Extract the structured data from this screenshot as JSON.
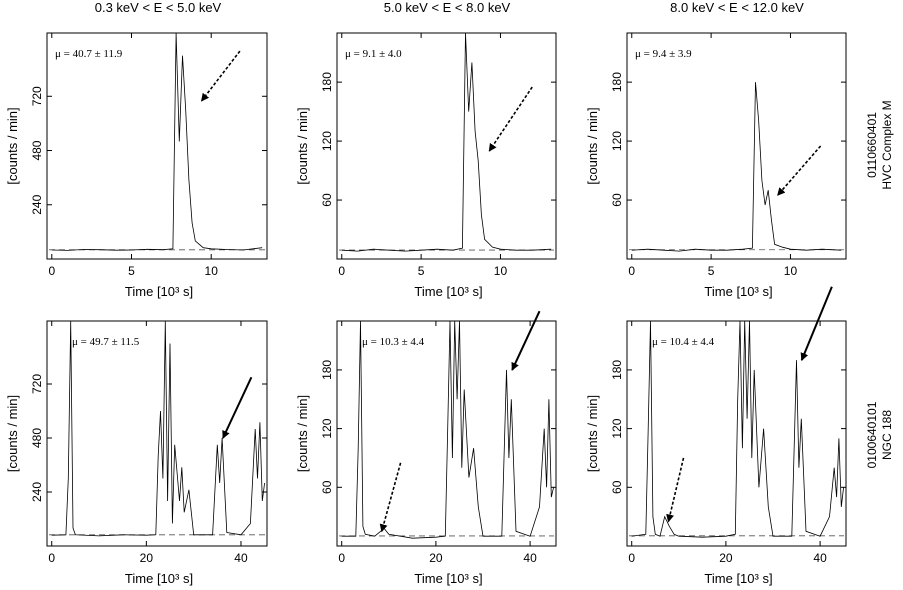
{
  "column_titles": [
    "0.3 keV < E < 5.0 keV",
    "5.0 keV < E < 8.0 keV",
    "8.0 keV < E < 12.0 keV"
  ],
  "row_labels": [
    {
      "obsid": "0110660401",
      "target": "HVC Complex M"
    },
    {
      "obsid": "0100640101",
      "target": "NGC 188"
    }
  ],
  "axis_labels": {
    "x": "Time   [10³ s]",
    "y": "[counts / min]"
  },
  "chart_data": [
    {
      "type": "line",
      "panel": "HVC Complex M, 0.3–5.0 keV",
      "annotation": "μ = 40.7 ± 11.9",
      "xlim": [
        -0.3,
        13.5
      ],
      "ylim": [
        0,
        1000
      ],
      "xticks": [
        0,
        5,
        10
      ],
      "yticks": [
        240,
        480,
        720
      ],
      "mean_line": 40.7,
      "series": [
        {
          "x": [
            0,
            1,
            2,
            3,
            4,
            5,
            6,
            7,
            7.6,
            7.8,
            8.0,
            8.2,
            8.4,
            8.6,
            8.8,
            9.0,
            9.5,
            10,
            11,
            12,
            13.2
          ],
          "y": [
            40,
            38,
            42,
            41,
            39,
            40,
            43,
            41,
            45,
            1000,
            520,
            900,
            660,
            350,
            160,
            80,
            50,
            45,
            42,
            40,
            50
          ]
        }
      ],
      "arrows": [
        {
          "style": "dotted",
          "tip": [
            9.4,
            700
          ],
          "tail": [
            11.8,
            920
          ]
        }
      ]
    },
    {
      "type": "line",
      "panel": "HVC Complex M, 5.0–8.0 keV",
      "annotation": "μ = 9.1 ± 4.0",
      "xlim": [
        -0.3,
        13.5
      ],
      "ylim": [
        0,
        230
      ],
      "xticks": [
        0,
        5,
        10
      ],
      "yticks": [
        60,
        120,
        180
      ],
      "mean_line": 9.1,
      "series": [
        {
          "x": [
            0,
            1,
            2,
            3,
            4,
            5,
            6,
            7,
            7.6,
            7.8,
            8.0,
            8.2,
            8.4,
            8.6,
            8.8,
            9.0,
            9.5,
            10,
            11,
            12,
            13.2
          ],
          "y": [
            9,
            8,
            10,
            9,
            8,
            9,
            10,
            9,
            11,
            230,
            150,
            200,
            130,
            100,
            45,
            20,
            12,
            10,
            9,
            9,
            10
          ]
        }
      ],
      "arrows": [
        {
          "style": "dotted",
          "tip": [
            9.3,
            110
          ],
          "tail": [
            12,
            175
          ]
        }
      ]
    },
    {
      "type": "line",
      "panel": "HVC Complex M, 8.0–12.0 keV",
      "annotation": "μ = 9.4 ± 3.9",
      "xlim": [
        -0.3,
        13.5
      ],
      "ylim": [
        0,
        230
      ],
      "xticks": [
        0,
        5,
        10
      ],
      "yticks": [
        60,
        120,
        180
      ],
      "mean_line": 9.4,
      "series": [
        {
          "x": [
            0,
            1,
            2,
            3,
            4,
            5,
            6,
            7,
            7.6,
            7.8,
            8.0,
            8.2,
            8.4,
            8.6,
            8.8,
            9.0,
            9.5,
            10,
            11,
            12,
            13.2
          ],
          "y": [
            9,
            10,
            9,
            8,
            10,
            9,
            9,
            10,
            11,
            180,
            140,
            80,
            55,
            70,
            40,
            15,
            12,
            10,
            9,
            10,
            9
          ]
        }
      ],
      "arrows": [
        {
          "style": "dotted",
          "tip": [
            9.2,
            65
          ],
          "tail": [
            11.9,
            115
          ]
        }
      ]
    },
    {
      "type": "line",
      "panel": "NGC 188, 0.3–5.0 keV",
      "annotation": "μ = 49.7 ± 11.5",
      "xlim": [
        -1,
        45.5
      ],
      "ylim": [
        0,
        1000
      ],
      "xticks": [
        0,
        20,
        40
      ],
      "yticks": [
        240,
        480,
        720
      ],
      "mean_line": 49.7,
      "series": [
        {
          "x": [
            0,
            3,
            3.5,
            4,
            4.5,
            5,
            10,
            15,
            20,
            22,
            22.5,
            23,
            23.5,
            24,
            24.5,
            25,
            25.5,
            26,
            27,
            27.5,
            28,
            29,
            30,
            34,
            35,
            35.5,
            36,
            37,
            40,
            42,
            43,
            43.5,
            44,
            44.5,
            45
          ],
          "y": [
            48,
            50,
            300,
            1000,
            80,
            50,
            45,
            50,
            48,
            50,
            400,
            600,
            300,
            1000,
            200,
            900,
            100,
            450,
            200,
            350,
            150,
            250,
            50,
            50,
            450,
            280,
            480,
            60,
            50,
            100,
            520,
            300,
            550,
            200,
            280
          ]
        }
      ],
      "arrows": [
        {
          "style": "solid",
          "tip": [
            36.2,
            480
          ],
          "tail": [
            42.2,
            750
          ]
        }
      ]
    },
    {
      "type": "line",
      "panel": "NGC 188, 5.0–8.0 keV",
      "annotation": "μ = 10.3 ± 4.4",
      "xlim": [
        -1,
        45.5
      ],
      "ylim": [
        0,
        230
      ],
      "xticks": [
        0,
        20,
        40
      ],
      "yticks": [
        60,
        120,
        180
      ],
      "mean_line": 10.3,
      "series": [
        {
          "x": [
            0,
            3,
            3.5,
            4,
            4.5,
            5,
            7,
            8,
            9,
            10,
            15,
            20,
            22,
            22.5,
            23,
            23.5,
            24,
            24.5,
            25,
            25.5,
            26,
            27,
            28,
            29,
            30,
            34,
            35,
            35.5,
            36,
            37,
            40,
            42,
            43,
            43.5,
            44,
            44.5,
            45
          ],
          "y": [
            10,
            10,
            100,
            230,
            20,
            12,
            10,
            14,
            18,
            12,
            8,
            9,
            10,
            120,
            230,
            90,
            230,
            150,
            230,
            80,
            160,
            70,
            100,
            40,
            10,
            10,
            180,
            90,
            150,
            15,
            10,
            40,
            120,
            60,
            150,
            50,
            60
          ]
        }
      ],
      "arrows": [
        {
          "style": "dotted",
          "tip": [
            8.5,
            15
          ],
          "tail": [
            12.5,
            85
          ]
        },
        {
          "style": "solid",
          "tip": [
            36.2,
            180
          ],
          "tail": [
            42,
            240
          ]
        }
      ]
    },
    {
      "type": "line",
      "panel": "NGC 188, 8.0–12.0 keV",
      "annotation": "μ = 10.4 ± 4.4",
      "xlim": [
        -1,
        45.5
      ],
      "ylim": [
        0,
        230
      ],
      "xticks": [
        0,
        20,
        40
      ],
      "yticks": [
        60,
        120,
        180
      ],
      "mean_line": 10.4,
      "series": [
        {
          "x": [
            0,
            3,
            3.5,
            4,
            4.5,
            5,
            6,
            7,
            8,
            9,
            10,
            15,
            20,
            22,
            22.5,
            23,
            23.5,
            24,
            24.5,
            25,
            25.5,
            26,
            27,
            28,
            29,
            30,
            34,
            35,
            35.5,
            36,
            37,
            40,
            42,
            43,
            43.5,
            44,
            44.5,
            45
          ],
          "y": [
            10,
            12,
            120,
            230,
            30,
            12,
            10,
            30,
            20,
            12,
            10,
            9,
            10,
            12,
            150,
            230,
            100,
            230,
            130,
            230,
            90,
            180,
            60,
            120,
            40,
            10,
            10,
            190,
            80,
            130,
            15,
            10,
            30,
            80,
            50,
            110,
            40,
            60
          ]
        }
      ],
      "arrows": [
        {
          "style": "dotted",
          "tip": [
            7.8,
            25
          ],
          "tail": [
            11,
            90
          ]
        },
        {
          "style": "solid",
          "tip": [
            36.1,
            190
          ],
          "tail": [
            42.5,
            265
          ]
        }
      ]
    }
  ]
}
